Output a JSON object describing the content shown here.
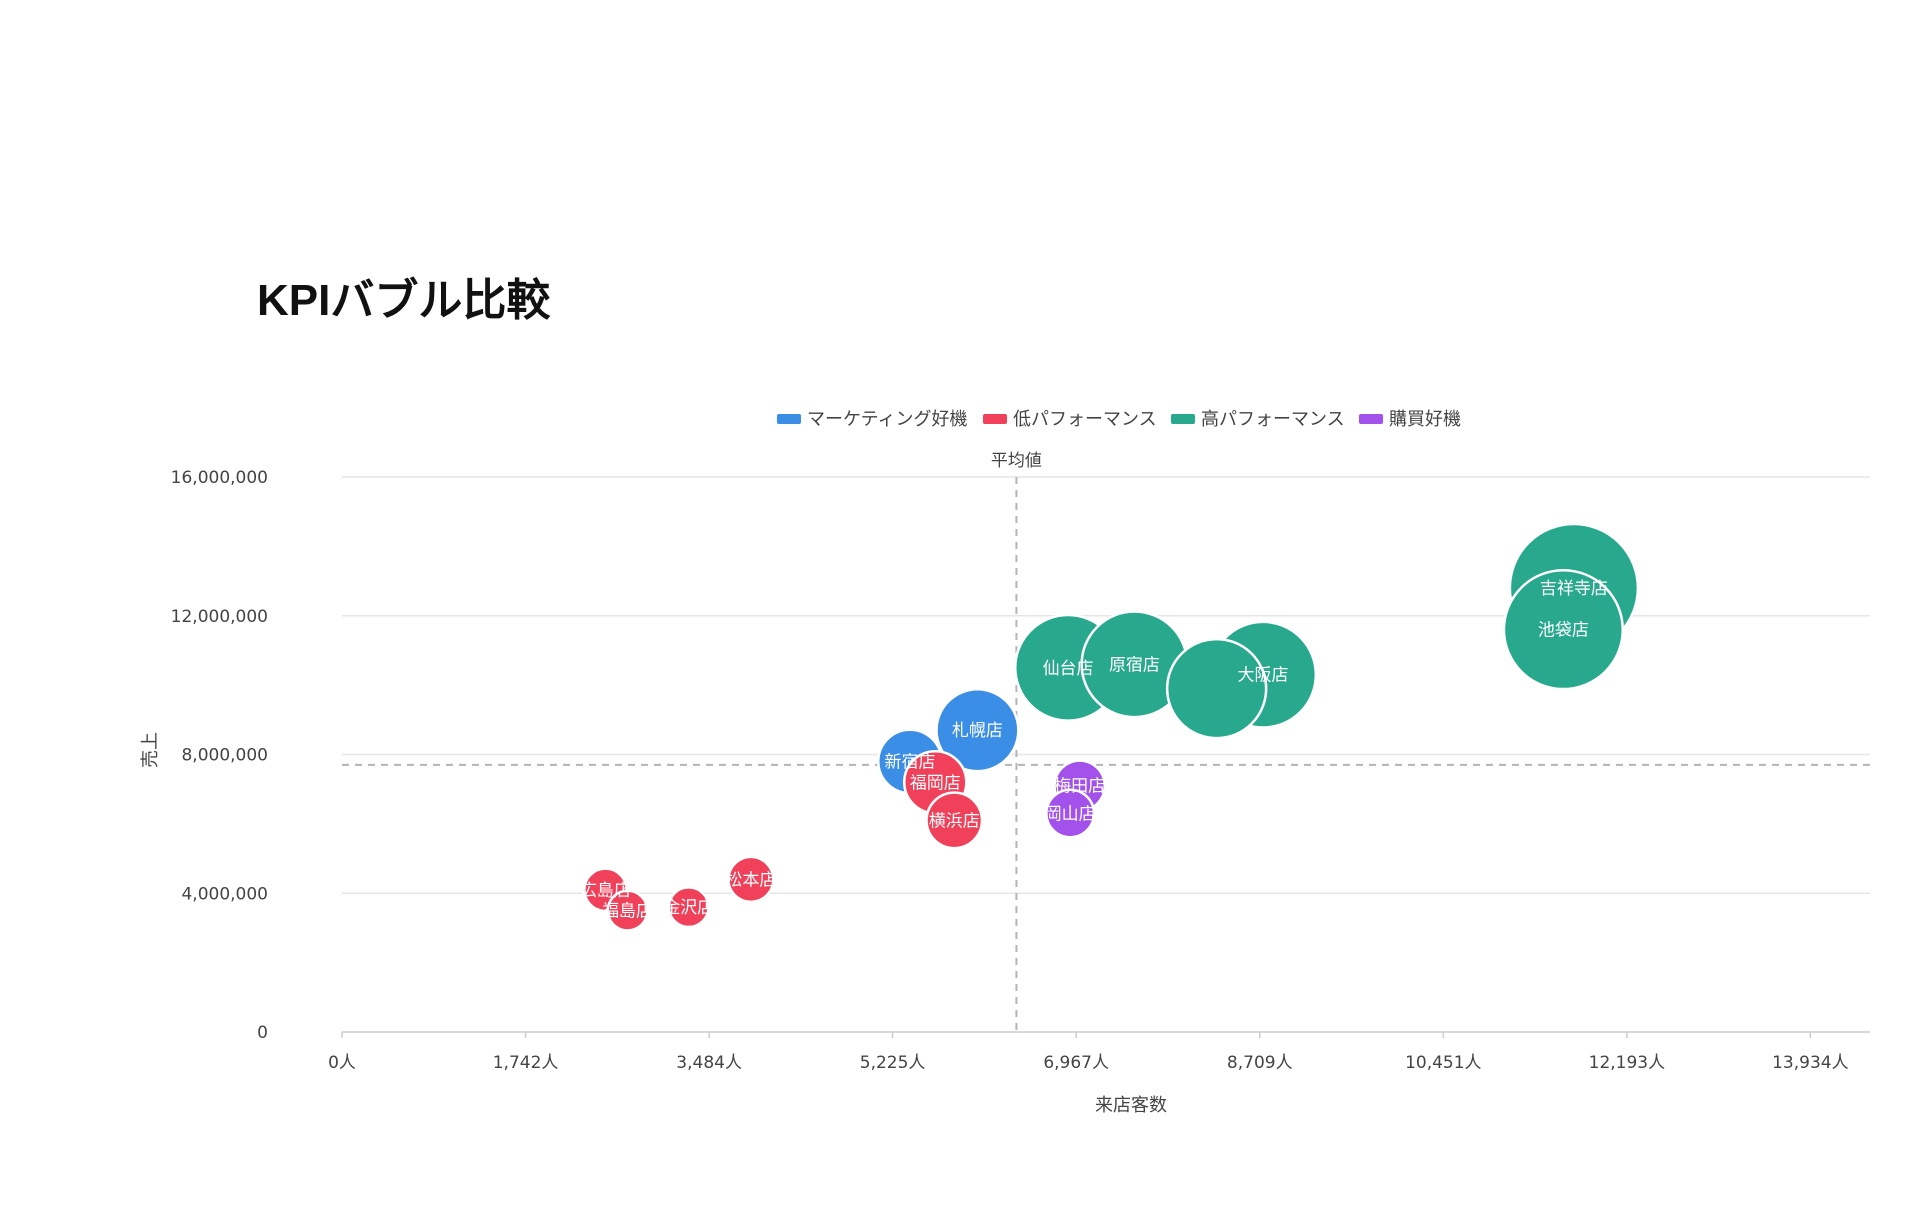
{
  "title": "KPIバブル比較",
  "chart_data": {
    "type": "scatter",
    "title": "KPIバブル比較",
    "xlabel": "来店客数",
    "ylabel": "売上",
    "xlim": [
      0,
      14500
    ],
    "ylim": [
      0,
      16000000
    ],
    "x_ticks": [
      0,
      1742,
      3484,
      5225,
      6967,
      8709,
      10451,
      12193,
      13934
    ],
    "x_tick_labels": [
      "0人",
      "1,742人",
      "3,484人",
      "5,225人",
      "6,967人",
      "8,709人",
      "10,451人",
      "12,193人",
      "13,934人"
    ],
    "y_ticks": [
      0,
      4000000,
      8000000,
      12000000,
      16000000
    ],
    "y_tick_labels": [
      "0",
      "4,000,000",
      "8,000,000",
      "12,000,000",
      "16,000,000"
    ],
    "grid": true,
    "legend_position": "top",
    "average_line": {
      "label": "平均値",
      "x": 6400,
      "y": 7700000
    },
    "series": [
      {
        "name": "マーケティング好機",
        "color": "#3a8ee6",
        "points": [
          {
            "label": "新宿店",
            "x": 5390,
            "y": 7800000,
            "size": 0.48
          },
          {
            "label": "札幌店",
            "x": 6030,
            "y": 8700000,
            "size": 0.62
          }
        ]
      },
      {
        "name": "低パフォーマンス",
        "color": "#f0405a",
        "points": [
          {
            "label": "広島店",
            "x": 2500,
            "y": 4100000,
            "size": 0.32
          },
          {
            "label": "福島店",
            "x": 2710,
            "y": 3500000,
            "size": 0.3
          },
          {
            "label": "金沢店",
            "x": 3290,
            "y": 3600000,
            "size": 0.3
          },
          {
            "label": "松本店",
            "x": 3880,
            "y": 4400000,
            "size": 0.34
          },
          {
            "label": "福岡店",
            "x": 5630,
            "y": 7200000,
            "size": 0.47
          },
          {
            "label": "横浜店",
            "x": 5810,
            "y": 6100000,
            "size": 0.42
          }
        ]
      },
      {
        "name": "高パフォーマンス",
        "color": "#28a88d",
        "points": [
          {
            "label": "仙台店",
            "x": 6890,
            "y": 10500000,
            "size": 0.8
          },
          {
            "label": "原宿店",
            "x": 7520,
            "y": 10600000,
            "size": 0.8
          },
          {
            "label": "大阪店",
            "x": 8740,
            "y": 10300000,
            "size": 0.8
          },
          {
            "label": "",
            "x": 8300,
            "y": 9900000,
            "size": 0.75
          },
          {
            "label": "吉祥寺店",
            "x": 11690,
            "y": 12800000,
            "size": 0.97
          },
          {
            "label": "池袋店",
            "x": 11590,
            "y": 11600000,
            "size": 0.9
          }
        ]
      },
      {
        "name": "購買好機",
        "color": "#a251ea",
        "points": [
          {
            "label": "梅田店",
            "x": 7000,
            "y": 7100000,
            "size": 0.38
          },
          {
            "label": "岡山店",
            "x": 6910,
            "y": 6300000,
            "size": 0.36
          }
        ]
      }
    ]
  }
}
